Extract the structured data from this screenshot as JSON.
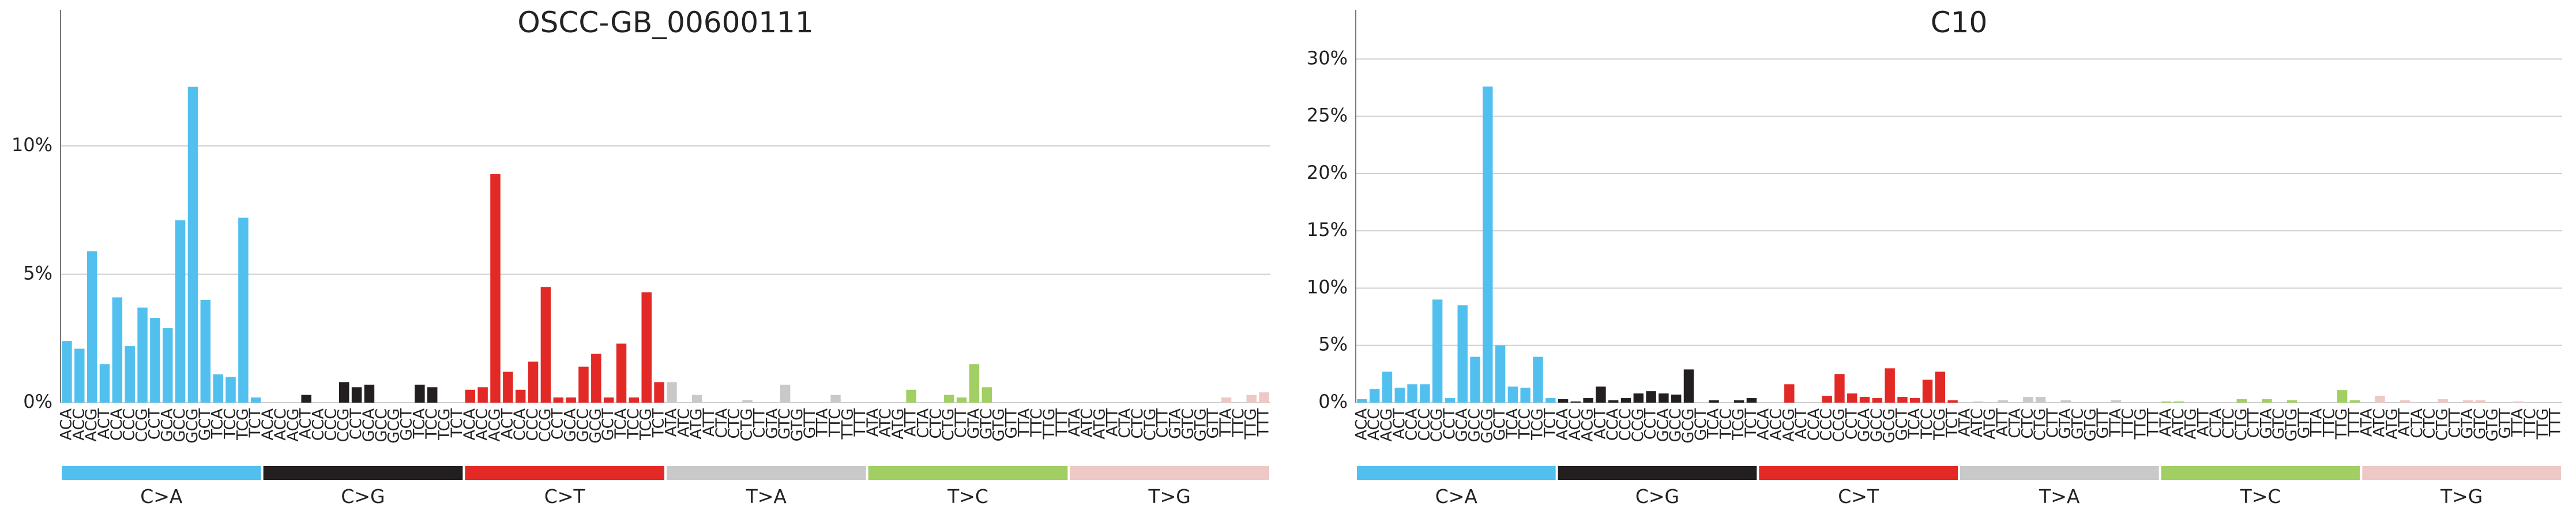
{
  "chart_data": [
    {
      "type": "bar",
      "title": "OSCC-GB_00600111",
      "categories": [
        "ACA",
        "ACC",
        "ACG",
        "ACT",
        "CCA",
        "CCC",
        "CCG",
        "CCT",
        "GCA",
        "GCC",
        "GCG",
        "GCT",
        "TCA",
        "TCC",
        "TCG",
        "TCT",
        "ACA",
        "ACC",
        "ACG",
        "ACT",
        "CCA",
        "CCC",
        "CCG",
        "CCT",
        "GCA",
        "GCC",
        "GCG",
        "GCT",
        "TCA",
        "TCC",
        "TCG",
        "TCT",
        "ACA",
        "ACC",
        "ACG",
        "ACT",
        "CCA",
        "CCC",
        "CCG",
        "CCT",
        "GCA",
        "GCC",
        "GCG",
        "GCT",
        "TCA",
        "TCC",
        "TCG",
        "TCT",
        "ATA",
        "ATC",
        "ATG",
        "ATT",
        "CTA",
        "CTC",
        "CTG",
        "CTT",
        "GTA",
        "GTC",
        "GTG",
        "GTT",
        "TTA",
        "TTC",
        "TTG",
        "TTT",
        "ATA",
        "ATC",
        "ATG",
        "ATT",
        "CTA",
        "CTC",
        "CTG",
        "CTT",
        "GTA",
        "GTC",
        "GTG",
        "GTT",
        "TTA",
        "TTC",
        "TTG",
        "TTT",
        "ATA",
        "ATC",
        "ATG",
        "ATT",
        "CTA",
        "CTC",
        "CTG",
        "CTT",
        "GTA",
        "GTC",
        "GTG",
        "GTT",
        "TTA",
        "TTC",
        "TTG",
        "TTT"
      ],
      "values": [
        2.4,
        2.1,
        5.9,
        1.5,
        4.1,
        2.2,
        3.7,
        3.3,
        2.9,
        7.1,
        12.3,
        4.0,
        1.1,
        1.0,
        7.2,
        0.2,
        0,
        0,
        0,
        0.3,
        0,
        0,
        0.8,
        0.6,
        0.7,
        0,
        0,
        0,
        0.7,
        0.6,
        0,
        0,
        0.5,
        0.6,
        8.9,
        1.2,
        0.5,
        1.6,
        4.5,
        0.2,
        0.2,
        1.4,
        1.9,
        0.2,
        2.3,
        0.2,
        4.3,
        0.8,
        0.8,
        0,
        0.3,
        0,
        0,
        0,
        0.1,
        0,
        0,
        0.7,
        0,
        0,
        0,
        0.3,
        0,
        0,
        0,
        0,
        0,
        0.5,
        0,
        0,
        0.3,
        0.2,
        1.5,
        0.6,
        0,
        0,
        0,
        0,
        0,
        0,
        0,
        0,
        0,
        0,
        0,
        0,
        0,
        0,
        0,
        0,
        0,
        0,
        0.2,
        0,
        0.3,
        0.4
      ],
      "groups": [
        {
          "name": "C>A",
          "color": "#52c0ee"
        },
        {
          "name": "C>G",
          "color": "#231f20"
        },
        {
          "name": "C>T",
          "color": "#e32926"
        },
        {
          "name": "T>A",
          "color": "#cac9c9"
        },
        {
          "name": "T>C",
          "color": "#a1cf64"
        },
        {
          "name": "T>G",
          "color": "#edc8c5"
        }
      ],
      "ylim": [
        0,
        15.3
      ],
      "yticks": [
        {
          "value": 0,
          "label": "0%"
        },
        {
          "value": 5,
          "label": "5%"
        },
        {
          "value": 10,
          "label": "10%"
        }
      ],
      "grid": true
    },
    {
      "type": "bar",
      "title": "C10",
      "categories": [
        "ACA",
        "ACC",
        "ACG",
        "ACT",
        "CCA",
        "CCC",
        "CCG",
        "CCT",
        "GCA",
        "GCC",
        "GCG",
        "GCT",
        "TCA",
        "TCC",
        "TCG",
        "TCT",
        "ACA",
        "ACC",
        "ACG",
        "ACT",
        "CCA",
        "CCC",
        "CCG",
        "CCT",
        "GCA",
        "GCC",
        "GCG",
        "GCT",
        "TCA",
        "TCC",
        "TCG",
        "TCT",
        "ACA",
        "ACC",
        "ACG",
        "ACT",
        "CCA",
        "CCC",
        "CCG",
        "CCT",
        "GCA",
        "GCC",
        "GCG",
        "GCT",
        "TCA",
        "TCC",
        "TCG",
        "TCT",
        "ATA",
        "ATC",
        "ATG",
        "ATT",
        "CTA",
        "CTC",
        "CTG",
        "CTT",
        "GTA",
        "GTC",
        "GTG",
        "GTT",
        "TTA",
        "TTC",
        "TTG",
        "TTT",
        "ATA",
        "ATC",
        "ATG",
        "ATT",
        "CTA",
        "CTC",
        "CTG",
        "CTT",
        "GTA",
        "GTC",
        "GTG",
        "GTT",
        "TTA",
        "TTC",
        "TTG",
        "TTT",
        "ATA",
        "ATC",
        "ATG",
        "ATT",
        "CTA",
        "CTC",
        "CTG",
        "CTT",
        "GTA",
        "GTC",
        "GTG",
        "GTT",
        "TTA",
        "TTC",
        "TTG",
        "TTT"
      ],
      "values": [
        0.3,
        1.2,
        2.7,
        1.3,
        1.6,
        1.6,
        9.0,
        0.4,
        8.5,
        4.0,
        27.6,
        5.0,
        1.4,
        1.3,
        4.0,
        0.4,
        0.3,
        0.1,
        0.4,
        1.4,
        0.2,
        0.4,
        0.8,
        1.0,
        0.8,
        0.7,
        2.9,
        0,
        0.2,
        0,
        0.2,
        0.4,
        0,
        0,
        1.6,
        0,
        0,
        0.6,
        2.5,
        0.8,
        0.5,
        0.4,
        3.0,
        0.5,
        0.4,
        2.0,
        2.7,
        0.2,
        0,
        0.1,
        0,
        0.2,
        0,
        0.5,
        0.5,
        0,
        0.2,
        0,
        0,
        0,
        0.2,
        0,
        0,
        0,
        0.1,
        0.1,
        0,
        0,
        0,
        0,
        0.3,
        0,
        0.3,
        0,
        0.2,
        0,
        0,
        0,
        1.1,
        0.2,
        0,
        0.6,
        0,
        0.2,
        0,
        0,
        0.3,
        0,
        0.2,
        0.2,
        0,
        0,
        0.1,
        0,
        0,
        0
      ],
      "groups": [
        {
          "name": "C>A",
          "color": "#52c0ee"
        },
        {
          "name": "C>G",
          "color": "#231f20"
        },
        {
          "name": "C>T",
          "color": "#e32926"
        },
        {
          "name": "T>A",
          "color": "#cac9c9"
        },
        {
          "name": "T>C",
          "color": "#a1cf64"
        },
        {
          "name": "T>G",
          "color": "#edc8c5"
        }
      ],
      "ylim": [
        0,
        34.3
      ],
      "yticks": [
        {
          "value": 0,
          "label": "0%"
        },
        {
          "value": 5,
          "label": "5%"
        },
        {
          "value": 10,
          "label": "10%"
        },
        {
          "value": 15,
          "label": "15%"
        },
        {
          "value": 20,
          "label": "20%"
        },
        {
          "value": 25,
          "label": "25%"
        },
        {
          "value": 30,
          "label": "30%"
        }
      ],
      "grid": true
    }
  ]
}
